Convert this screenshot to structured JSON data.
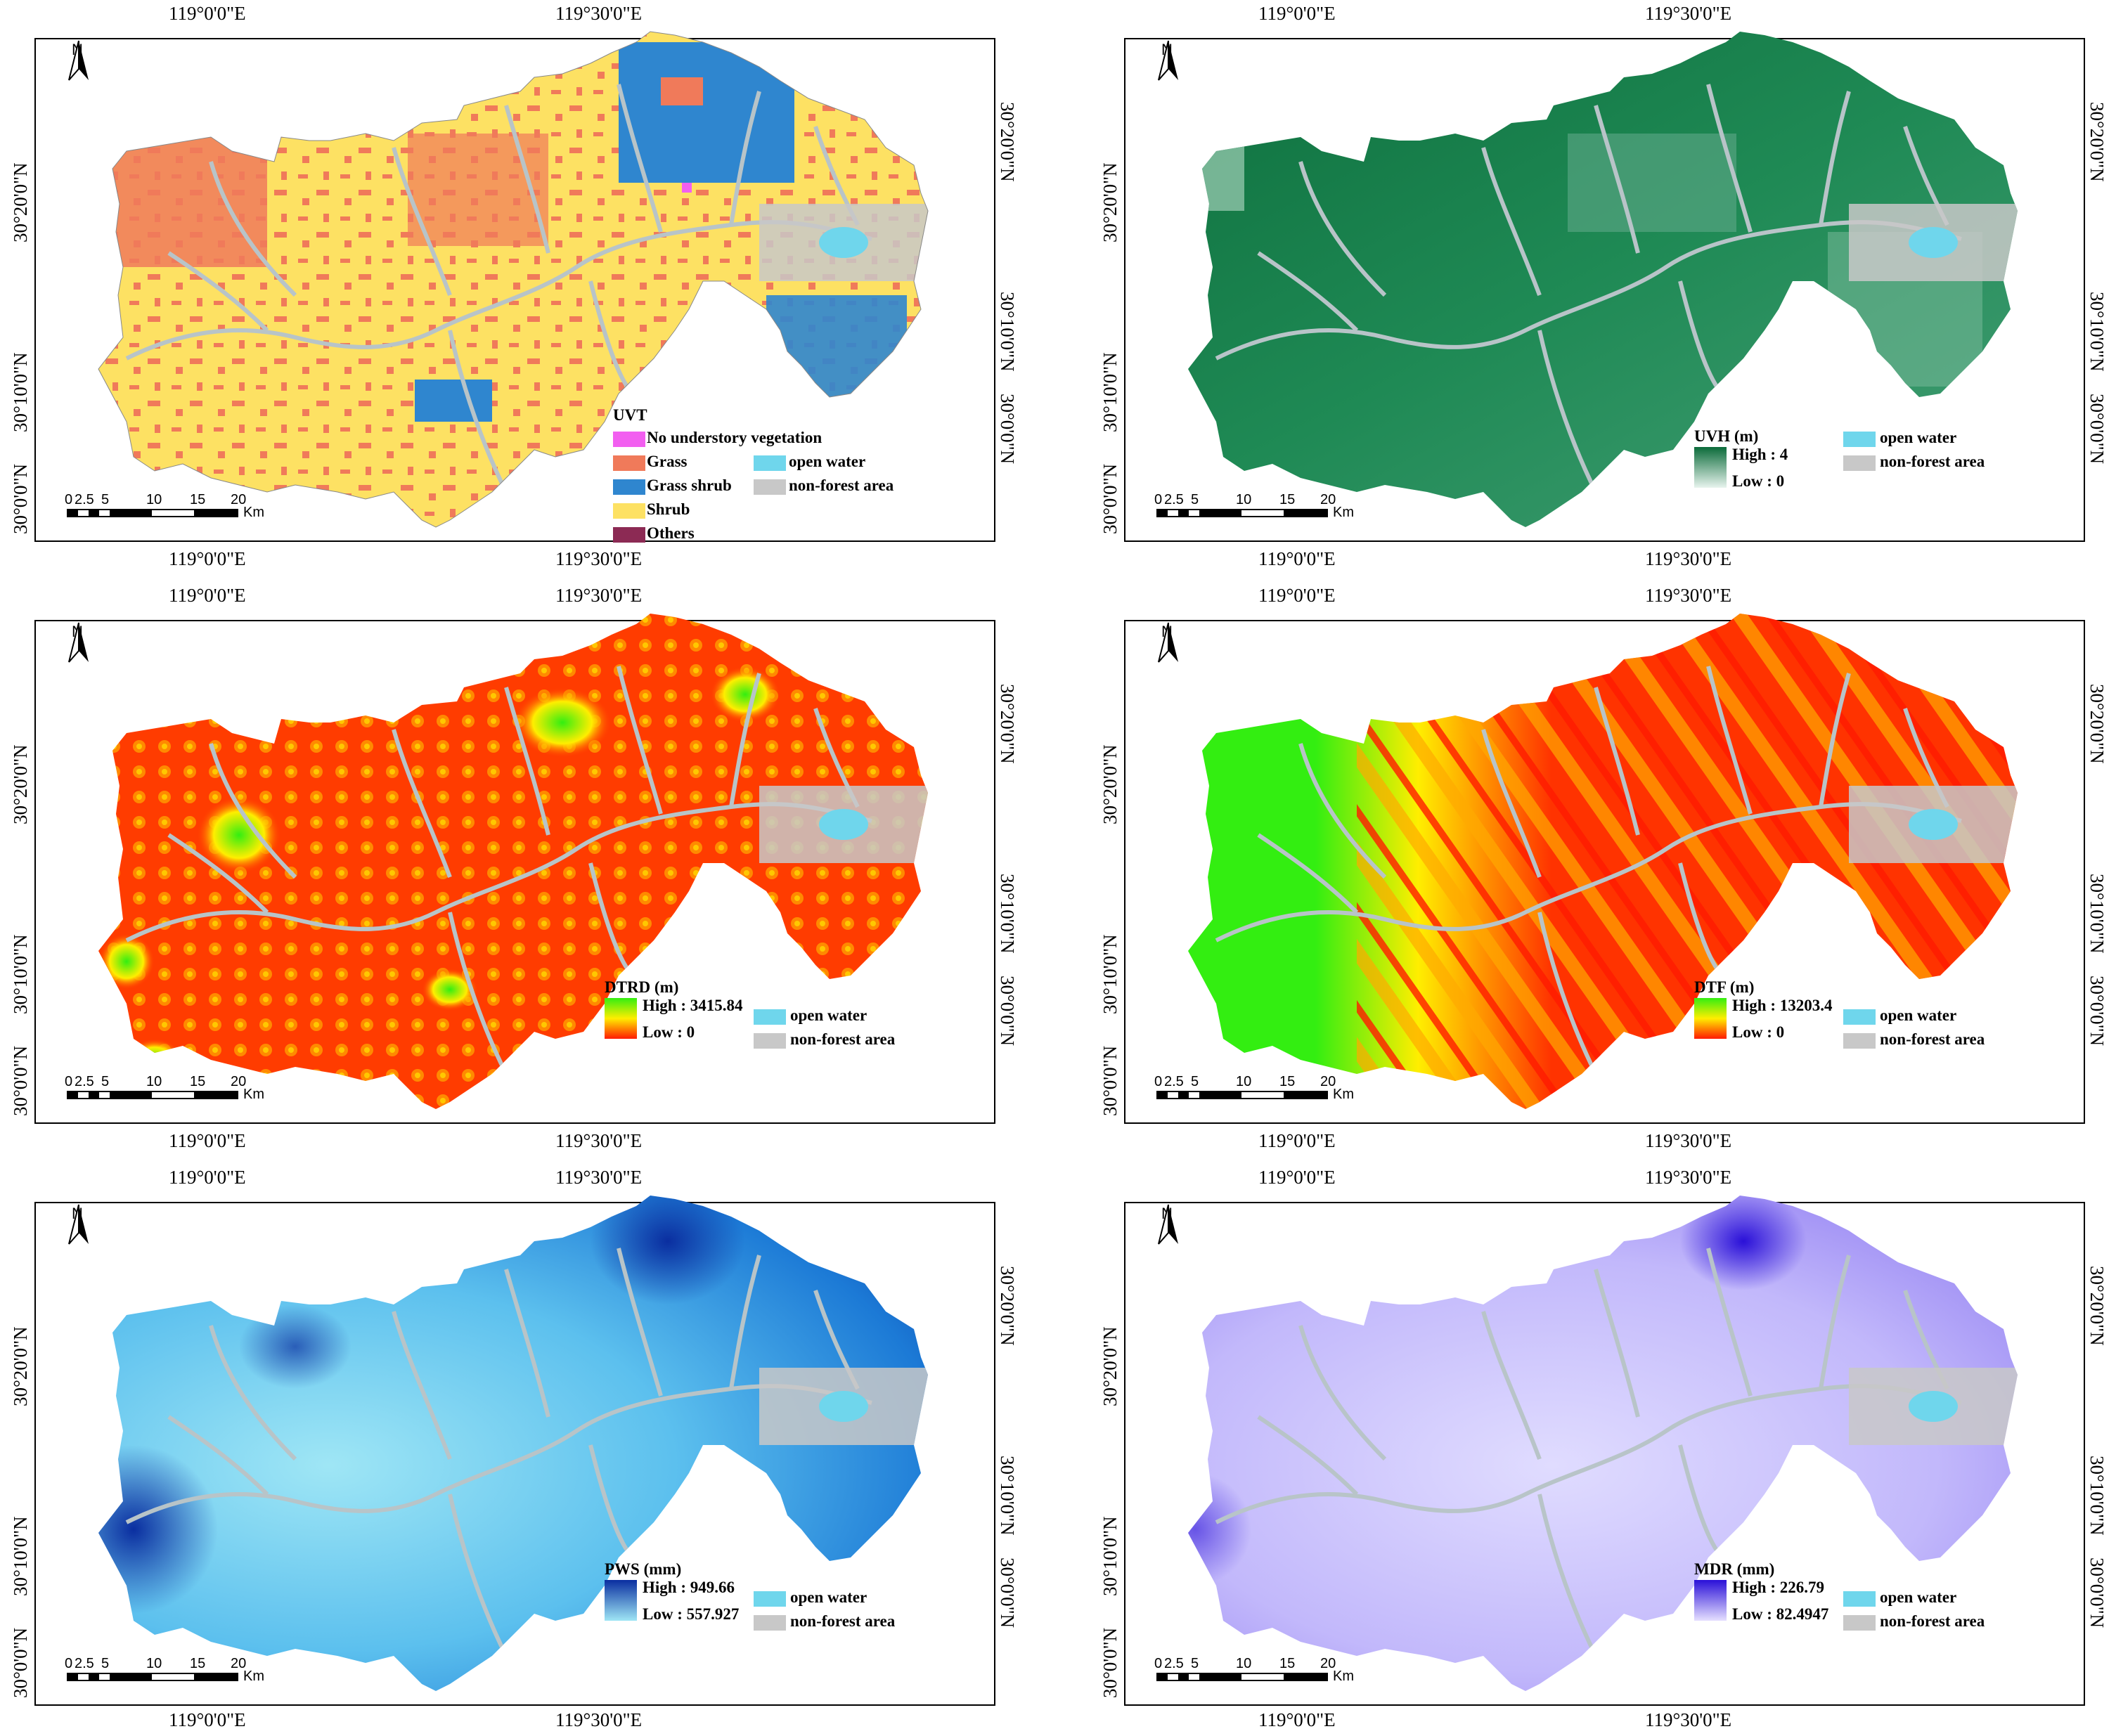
{
  "longitude_labels": [
    "119°0'0\"E",
    "119°30'0\"E"
  ],
  "latitude_labels": [
    "30°20'0\"N",
    "30°10'0\"N",
    "30°0'0\"N"
  ],
  "north_label": "N",
  "scale_bar": {
    "ticks": [
      "0",
      "2.5",
      "5",
      "10",
      "15",
      "20"
    ],
    "unit": "Km"
  },
  "common_legend": {
    "open_water": "open water",
    "non_forest": "non-forest area"
  },
  "colors": {
    "open_water": "#6fd6ec",
    "non_forest": "#c8c8c8"
  },
  "panels": [
    {
      "id": "uvt",
      "legend_title": "UVT",
      "type": "categorical",
      "classes": [
        {
          "label": "No understory vegetation",
          "color": "#f25ff0"
        },
        {
          "label": "Grass",
          "color": "#f07a5a"
        },
        {
          "label": "Grass shrub",
          "color": "#2f86cf"
        },
        {
          "label": "Shrub",
          "color": "#fde163"
        },
        {
          "label": "Others",
          "color": "#8c2a54"
        }
      ]
    },
    {
      "id": "uvh",
      "legend_title": "UVH (m)",
      "type": "continuous",
      "high": "High : 4",
      "low": "Low : 0",
      "ramp": [
        "#0b6b3a",
        "#e8f4ee"
      ]
    },
    {
      "id": "dtrd",
      "legend_title": "DTRD (m)",
      "type": "continuous",
      "high": "High : 3415.84",
      "low": "Low : 0",
      "ramp": [
        "#33ee11",
        "#ffee00",
        "#ff1a00"
      ]
    },
    {
      "id": "dtf",
      "legend_title": "DTF (m)",
      "type": "continuous",
      "high": "High : 13203.4",
      "low": "Low : 0",
      "ramp": [
        "#33ee11",
        "#ffee00",
        "#ff1a00"
      ]
    },
    {
      "id": "pws",
      "legend_title": "PWS (mm)",
      "type": "continuous",
      "high": "High : 949.66",
      "low": "Low : 557.927",
      "ramp": [
        "#0a2ea0",
        "#9fe6f5"
      ]
    },
    {
      "id": "mdr",
      "legend_title": "MDR (mm)",
      "type": "continuous",
      "high": "High : 226.79",
      "low": "Low : 82.4947",
      "ramp": [
        "#2a10d8",
        "#e6e0ff"
      ]
    }
  ]
}
